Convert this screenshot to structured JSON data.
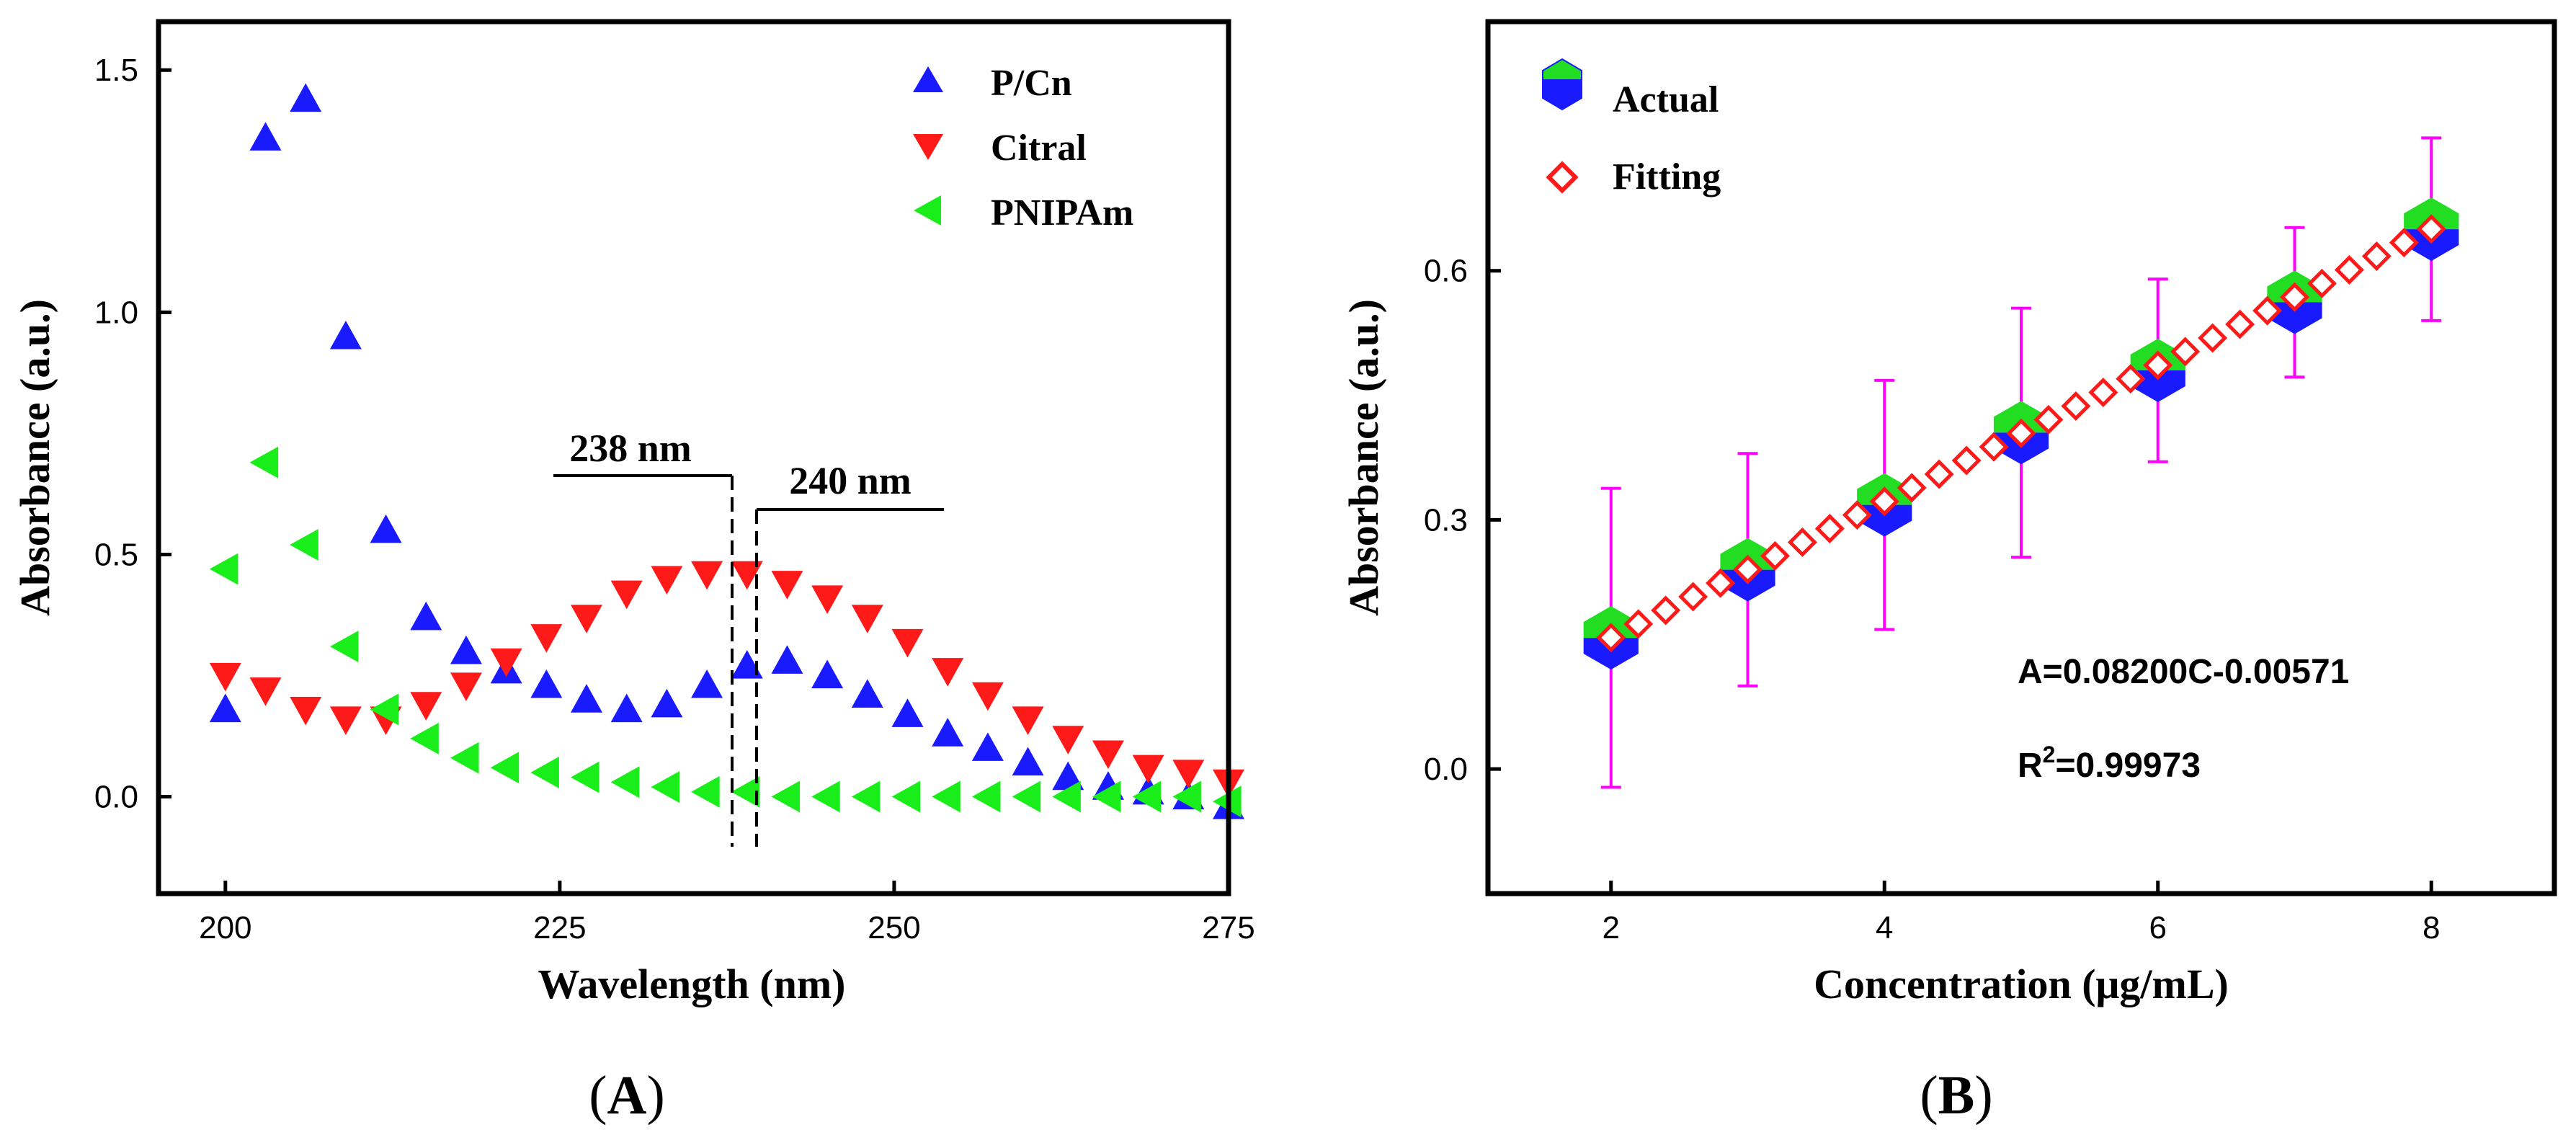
{
  "colors": {
    "blue": "#1a1aff",
    "red": "#ff1a1a",
    "green": "#1aee1a",
    "magenta": "#ff00ff",
    "hex_top": "#22dd22",
    "hex_bottom": "#1a1aff",
    "fit_fill": "#ffffff",
    "fit_stroke": "#ff1a1a"
  },
  "panels": {
    "a_label": "A",
    "b_label": "B"
  },
  "chart_data": [
    {
      "id": "A",
      "type": "scatter",
      "xlabel": "Wavelength (nm)",
      "ylabel": "Absorbance (a.u.)",
      "xlim": [
        195,
        275
      ],
      "ylim": [
        -0.2,
        1.6
      ],
      "xticks": [
        200,
        225,
        250,
        275
      ],
      "yticks": [
        0.0,
        0.5,
        1.0,
        1.5
      ],
      "ytick_labels": [
        "0.0",
        "0.5",
        "1.0",
        "1.5"
      ],
      "legend_position": "top-right",
      "series": [
        {
          "name": "P/Cn",
          "marker": "triangle-up",
          "color": "#1a1aff",
          "x": [
            200,
            203,
            206,
            209,
            212,
            215,
            218,
            221,
            224,
            227,
            230,
            233,
            236,
            239,
            242,
            245,
            248,
            251,
            254,
            257,
            260,
            263,
            266,
            269,
            272,
            275
          ],
          "y": [
            0.18,
            1.36,
            1.44,
            0.95,
            0.55,
            0.37,
            0.3,
            0.26,
            0.23,
            0.2,
            0.18,
            0.19,
            0.23,
            0.27,
            0.28,
            0.25,
            0.21,
            0.17,
            0.13,
            0.1,
            0.07,
            0.04,
            0.02,
            0.01,
            0.0,
            -0.02
          ]
        },
        {
          "name": "Citral",
          "marker": "triangle-down",
          "color": "#ff1a1a",
          "x": [
            200,
            203,
            206,
            209,
            212,
            215,
            218,
            221,
            224,
            227,
            230,
            233,
            236,
            239,
            242,
            245,
            248,
            251,
            254,
            257,
            260,
            263,
            266,
            269,
            272,
            275
          ],
          "y": [
            0.25,
            0.22,
            0.18,
            0.16,
            0.16,
            0.19,
            0.23,
            0.28,
            0.33,
            0.37,
            0.42,
            0.45,
            0.46,
            0.46,
            0.44,
            0.41,
            0.37,
            0.32,
            0.26,
            0.21,
            0.16,
            0.12,
            0.09,
            0.06,
            0.05,
            0.03
          ]
        },
        {
          "name": "PNIPAm",
          "marker": "triangle-left",
          "color": "#1aee1a",
          "x": [
            200,
            203,
            206,
            209,
            212,
            215,
            218,
            221,
            224,
            227,
            230,
            233,
            236,
            239,
            242,
            245,
            248,
            251,
            254,
            257,
            260,
            263,
            266,
            269,
            272,
            275
          ],
          "y": [
            0.47,
            0.69,
            0.52,
            0.31,
            0.18,
            0.12,
            0.08,
            0.06,
            0.05,
            0.04,
            0.03,
            0.02,
            0.01,
            0.01,
            0.0,
            0.0,
            0.0,
            0.0,
            0.0,
            0.0,
            0.0,
            0.0,
            0.0,
            0.0,
            0.0,
            -0.01
          ]
        }
      ],
      "annotations": [
        {
          "text": "238 nm",
          "x": 238,
          "bracket_from": 224,
          "bracket_to": 238,
          "y": 0.65
        },
        {
          "text": "240 nm",
          "x": 240,
          "bracket_from": 240,
          "bracket_to": 254,
          "y": 0.58
        }
      ],
      "vlines": [
        238,
        240
      ]
    },
    {
      "id": "B",
      "type": "scatter",
      "xlabel": "Concentration (μg/mL)",
      "ylabel": "Absorbance (a.u.)",
      "xlim": [
        1.1,
        8.9
      ],
      "ylim": [
        -0.15,
        0.9
      ],
      "xticks": [
        2,
        4,
        6,
        8
      ],
      "yticks": [
        0.0,
        0.3,
        0.6
      ],
      "ytick_labels": [
        "0.0",
        "0.3",
        "0.6"
      ],
      "legend_position": "top-left",
      "series": [
        {
          "name": "Actual",
          "marker": "hexagon",
          "x": [
            2,
            3,
            4,
            5,
            6,
            7,
            8
          ],
          "y": [
            0.158,
            0.24,
            0.318,
            0.405,
            0.48,
            0.562,
            0.65
          ],
          "err": [
            0.18,
            0.14,
            0.15,
            0.15,
            0.11,
            0.09,
            0.11
          ]
        },
        {
          "name": "Fitting",
          "marker": "diamond",
          "x_start": 2,
          "x_end": 8,
          "x_step": 0.2,
          "slope": 0.082,
          "intercept": -0.00571
        }
      ],
      "equation": "A=0.08200C-0.00571",
      "r2_prefix": "R",
      "r2_sup": "2",
      "r2_value": "=0.99973"
    }
  ]
}
